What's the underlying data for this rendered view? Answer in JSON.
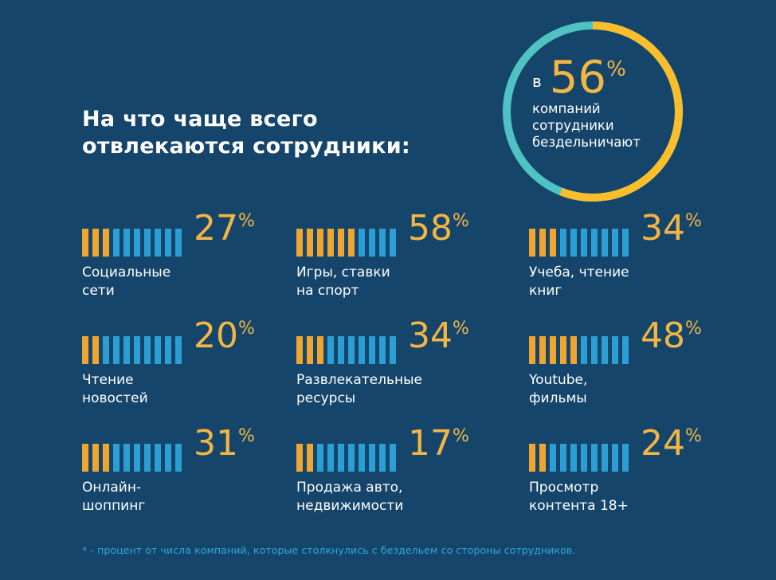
{
  "title": [
    "На что чаще всего",
    "отвлекаются сотрудники:"
  ],
  "highlight": {
    "prefix": "в",
    "value": 56,
    "value_text": "56",
    "percent_sign": "%",
    "lines": [
      "компаний",
      "сотрудники",
      "бездельничают"
    ]
  },
  "colors": {
    "background": "#16456b",
    "accent_orange": "#f4b642",
    "bar_orange": "#f0a530",
    "bar_blue": "#2b9fd3",
    "ring_teal": "#4fc3c3",
    "ring_yellow": "#fbbe2b",
    "footnote": "#2fa8d9"
  },
  "chart_data": {
    "type": "bar",
    "unit": "%",
    "segments_per_bar": 10,
    "categories": [
      [
        "Социальные",
        "сети"
      ],
      [
        "Игры, ставки",
        "на спорт"
      ],
      [
        "Учеба, чтение",
        "книг"
      ],
      [
        "Чтение",
        "новостей"
      ],
      [
        "Развлекательные",
        "ресурсы"
      ],
      [
        "Youtube,",
        "фильмы"
      ],
      [
        "Онлайн-",
        "шоппинг"
      ],
      [
        "Продажа авто,",
        "недвижимости"
      ],
      [
        "Просмотр",
        "контента 18+"
      ]
    ],
    "values": [
      27,
      58,
      34,
      20,
      34,
      48,
      31,
      17,
      24
    ],
    "value_labels": [
      "27",
      "58",
      "34",
      "20",
      "34",
      "48",
      "31",
      "17",
      "24"
    ]
  },
  "footnote": "* - процент от числа компаний, которые столкнулись с бездельем со стороны сотрудников."
}
